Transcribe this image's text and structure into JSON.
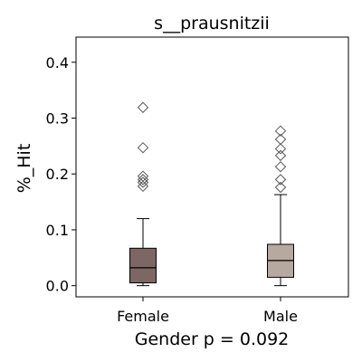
{
  "chart_data": {
    "type": "box",
    "title": "s__prausnitzii",
    "ylabel": "%_Hit",
    "xlabel": "Gender p = 0.092",
    "categories": [
      "Female",
      "Male"
    ],
    "ylim": [
      -0.02,
      0.445
    ],
    "yticks": [
      "0.0",
      "0.1",
      "0.2",
      "0.3",
      "0.4"
    ],
    "ytick_values": [
      0.0,
      0.1,
      0.2,
      0.3,
      0.4
    ],
    "grid": false,
    "legend": "none",
    "boxes": [
      {
        "name": "Female",
        "color": "#7d6765",
        "whisker_low": 0.0,
        "q1": 0.005,
        "median": 0.032,
        "q3": 0.067,
        "whisker_high": 0.12,
        "outliers": [
          0.178,
          0.185,
          0.19,
          0.196,
          0.247,
          0.319
        ]
      },
      {
        "name": "Male",
        "color": "#b6a99f",
        "whisker_low": 0.0,
        "q1": 0.015,
        "median": 0.045,
        "q3": 0.074,
        "whisker_high": 0.163,
        "outliers": [
          0.176,
          0.19,
          0.213,
          0.233,
          0.245,
          0.262,
          0.277
        ]
      }
    ]
  }
}
